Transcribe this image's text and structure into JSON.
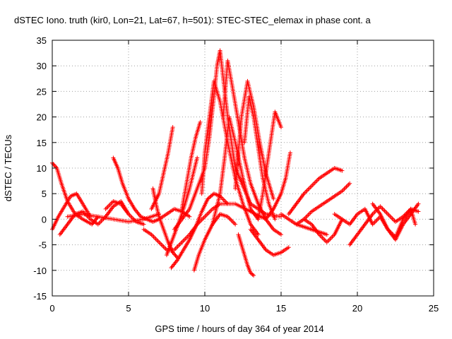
{
  "chart_data": {
    "type": "scatter",
    "title": "dSTEC Iono. truth (kir0, Lon=21, Lat=67, h=501): STEC-STEC_elemax in phase cont. a",
    "xlabel": "GPS time / hours of day 364 of year 2014",
    "ylabel": "dSTEC  / TECUs",
    "xlim": [
      0,
      25
    ],
    "ylim": [
      -15,
      35
    ],
    "x_ticks": [
      "0",
      "5",
      "10",
      "15",
      "20",
      "25"
    ],
    "y_ticks": [
      "-15",
      "-10",
      "-5",
      "0",
      "5",
      "10",
      "15",
      "20",
      "25",
      "30",
      "35"
    ],
    "grid": true,
    "marker": "+",
    "color": "#ff0000",
    "series": [
      {
        "x": [
          0.0,
          0.3,
          0.6,
          1.0,
          1.5,
          2.0,
          2.6,
          3.0
        ],
        "y": [
          11.0,
          10.0,
          7.0,
          3.5,
          1.0,
          0.0,
          -1.0,
          0.5
        ]
      },
      {
        "x": [
          0.0,
          0.4,
          0.8,
          1.2,
          1.6,
          2.0,
          2.5
        ],
        "y": [
          -2.0,
          0.5,
          2.5,
          4.5,
          5.0,
          3.0,
          0.5
        ]
      },
      {
        "x": [
          0.5,
          1.0,
          1.5,
          2.0,
          2.5,
          3.0,
          3.5,
          4.0,
          4.5,
          5.0
        ],
        "y": [
          -3.0,
          -1.0,
          1.0,
          1.5,
          0.0,
          -1.0,
          0.5,
          2.5,
          3.5,
          1.0
        ]
      },
      {
        "x": [
          1.0,
          2.0,
          3.0,
          4.0,
          5.0,
          6.0,
          7.0
        ],
        "y": [
          0.5,
          1.0,
          0.5,
          0.0,
          -0.5,
          0.0,
          1.0
        ]
      },
      {
        "x": [
          3.5,
          4.0,
          4.5,
          5.0,
          5.5,
          6.0
        ],
        "y": [
          2.0,
          3.5,
          3.0,
          1.0,
          -0.5,
          -1.0
        ]
      },
      {
        "x": [
          4.0,
          4.3,
          4.6,
          5.0,
          5.4,
          5.8,
          6.2,
          6.6,
          7.0,
          7.5,
          8.0,
          8.5,
          9.0
        ],
        "y": [
          12.0,
          10.0,
          7.0,
          4.0,
          2.0,
          0.5,
          0.0,
          -0.5,
          0.0,
          1.0,
          2.0,
          1.5,
          0.5
        ]
      },
      {
        "x": [
          6.6,
          6.8,
          7.0,
          7.3,
          7.6,
          7.9,
          8.2
        ],
        "y": [
          6.0,
          3.0,
          0.5,
          -2.0,
          -4.5,
          -6.5,
          -7.5
        ]
      },
      {
        "x": [
          6.0,
          6.5,
          7.0,
          7.5,
          8.0,
          8.5,
          9.0,
          9.5,
          10.0,
          10.5,
          11.0,
          12.0,
          13.0,
          14.0
        ],
        "y": [
          -2.0,
          -3.0,
          -4.5,
          -6.0,
          -6.0,
          -4.5,
          -3.0,
          -1.0,
          0.5,
          2.0,
          3.0,
          3.0,
          1.5,
          0.0
        ]
      },
      {
        "x": [
          6.5,
          7.0,
          7.3,
          7.6,
          7.9
        ],
        "y": [
          2.0,
          5.0,
          9.0,
          13.0,
          18.0
        ]
      },
      {
        "x": [
          7.8,
          8.2,
          8.6,
          9.0,
          9.4,
          9.8,
          10.2,
          10.6,
          11.0,
          11.5
        ],
        "y": [
          -9.5,
          -8.0,
          -6.0,
          -4.0,
          -1.5,
          1.5,
          4.0,
          5.0,
          4.5,
          3.0
        ]
      },
      {
        "x": [
          7.5,
          8.0,
          8.5,
          9.0,
          9.5
        ],
        "y": [
          -7.0,
          -3.0,
          1.0,
          6.0,
          12.0
        ]
      },
      {
        "x": [
          8.5,
          8.8,
          9.1,
          9.4,
          9.7
        ],
        "y": [
          2.0,
          7.0,
          12.0,
          16.0,
          19.0
        ]
      },
      {
        "x": [
          9.3,
          9.6,
          10.0,
          10.5,
          11.0,
          11.5,
          12.0
        ],
        "y": [
          -10.0,
          -7.0,
          -4.0,
          -1.0,
          1.0,
          0.5,
          -1.0
        ]
      },
      {
        "x": [
          8.0,
          9.0,
          10.0,
          10.3,
          10.6,
          10.8,
          11.0,
          11.5,
          12.0,
          13.0,
          14.0,
          15.0
        ],
        "y": [
          -2.0,
          2.0,
          10.0,
          16.0,
          24.0,
          30.0,
          33.0,
          20.0,
          10.0,
          3.0,
          1.0,
          0.5
        ]
      },
      {
        "x": [
          9.8,
          10.0,
          10.3,
          10.6,
          11.0,
          11.5,
          12.0,
          12.5,
          13.0,
          13.5
        ],
        "y": [
          5.0,
          13.0,
          20.0,
          27.0,
          23.0,
          15.0,
          8.0,
          3.0,
          -1.0,
          -3.0
        ]
      },
      {
        "x": [
          10.5,
          11.0,
          11.3,
          11.6,
          12.0,
          12.5,
          13.0,
          13.5
        ],
        "y": [
          -1.0,
          5.0,
          12.0,
          20.0,
          15.0,
          8.0,
          2.0,
          0.0
        ]
      },
      {
        "x": [
          11.2,
          11.5,
          11.8,
          12.2,
          12.6,
          13.0,
          13.5,
          14.0,
          14.5,
          15.0
        ],
        "y": [
          20.0,
          31.0,
          26.0,
          19.0,
          12.0,
          7.0,
          3.0,
          0.0,
          -2.0,
          -3.0
        ]
      },
      {
        "x": [
          12.0,
          12.4,
          12.8,
          13.2,
          13.6,
          14.0,
          14.5
        ],
        "y": [
          6.0,
          20.0,
          27.0,
          22.0,
          15.0,
          9.0,
          4.0
        ]
      },
      {
        "x": [
          12.6,
          12.9,
          13.2,
          13.5,
          13.8,
          14.2,
          14.6
        ],
        "y": [
          15.0,
          24.0,
          20.0,
          14.0,
          8.0,
          3.0,
          0.0
        ]
      },
      {
        "x": [
          12.2,
          12.5,
          12.8,
          13.0,
          13.2
        ],
        "y": [
          -3.0,
          -6.0,
          -9.0,
          -10.5,
          -11.0
        ]
      },
      {
        "x": [
          13.0,
          13.5,
          14.0,
          14.5,
          15.0,
          15.5
        ],
        "y": [
          -2.0,
          -4.0,
          -6.0,
          -7.0,
          -6.5,
          -5.5
        ]
      },
      {
        "x": [
          13.5,
          13.8,
          14.2,
          14.6,
          15.0
        ],
        "y": [
          0.0,
          5.0,
          13.0,
          21.0,
          18.0
        ]
      },
      {
        "x": [
          14.0,
          14.5,
          15.0,
          15.3,
          15.6
        ],
        "y": [
          0.0,
          2.0,
          5.0,
          8.0,
          13.0
        ]
      },
      {
        "x": [
          15.0,
          15.5,
          16.0,
          16.5,
          17.0,
          17.5,
          18.0
        ],
        "y": [
          1.0,
          0.0,
          -1.0,
          -1.5,
          -2.0,
          -2.5,
          -3.0
        ]
      },
      {
        "x": [
          15.5,
          16.0,
          16.5,
          17.0,
          17.5,
          18.0,
          18.5,
          19.0
        ],
        "y": [
          1.0,
          3.0,
          5.0,
          6.5,
          8.0,
          9.0,
          10.0,
          9.5
        ]
      },
      {
        "x": [
          16.0,
          16.5,
          17.0,
          17.5,
          18.0,
          18.5,
          19.0,
          19.5
        ],
        "y": [
          -1.0,
          0.0,
          1.5,
          2.5,
          3.5,
          4.5,
          5.5,
          7.0
        ]
      },
      {
        "x": [
          16.5,
          17.0,
          17.5,
          18.0,
          18.5,
          19.0
        ],
        "y": [
          0.0,
          -1.0,
          -3.0,
          -4.5,
          -3.0,
          0.0
        ]
      },
      {
        "x": [
          18.5,
          19.0,
          19.5,
          20.0,
          20.5,
          21.0,
          21.5,
          22.0,
          22.5,
          23.0,
          23.5,
          24.0
        ],
        "y": [
          1.0,
          0.0,
          -1.0,
          1.0,
          2.0,
          -1.0,
          0.5,
          -2.0,
          -4.0,
          -1.0,
          1.0,
          3.0
        ]
      },
      {
        "x": [
          19.5,
          20.0,
          20.5,
          21.0,
          21.5,
          22.0,
          22.5,
          23.0,
          23.5,
          24.0
        ],
        "y": [
          -5.0,
          -3.0,
          -1.0,
          1.0,
          2.5,
          1.0,
          -0.5,
          0.5,
          2.0,
          1.5
        ]
      },
      {
        "x": [
          21.0,
          21.5,
          22.0,
          22.5,
          23.0,
          23.5,
          23.8
        ],
        "y": [
          3.0,
          1.0,
          -2.0,
          -3.5,
          0.0,
          2.0,
          -1.0
        ]
      }
    ]
  }
}
